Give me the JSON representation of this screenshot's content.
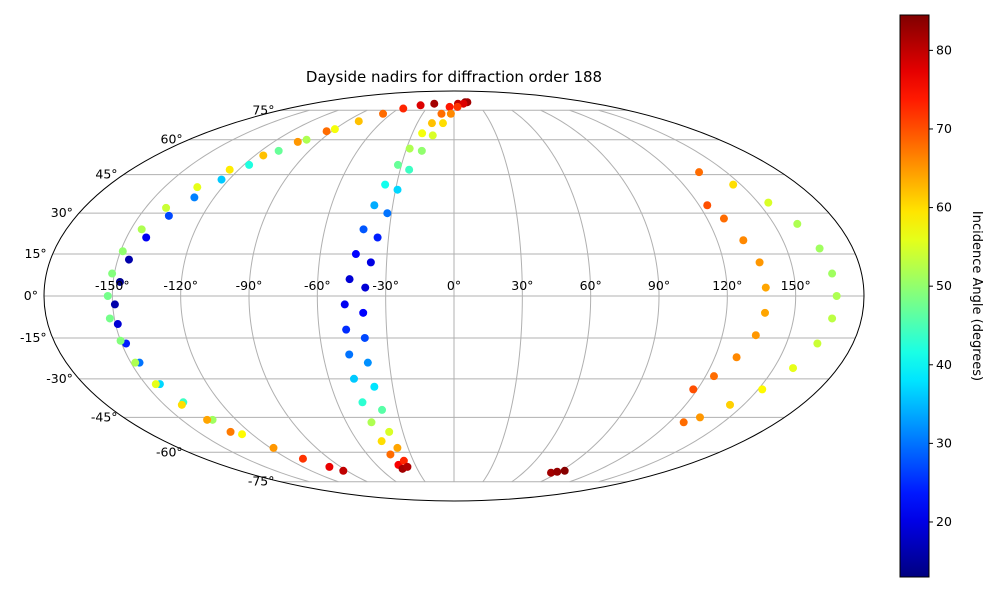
{
  "chart_data": {
    "type": "scatter",
    "projection": "mollweide",
    "title": "Dayside nadirs for diffraction order 188",
    "x_tick_labels": [
      "-150°",
      "-120°",
      "-90°",
      "-60°",
      "-30°",
      "0°",
      "30°",
      "60°",
      "90°",
      "120°",
      "150°"
    ],
    "x_tick_values": [
      -150,
      -120,
      -90,
      -60,
      -30,
      0,
      30,
      60,
      90,
      120,
      150
    ],
    "y_tick_labels": [
      "75°",
      "60°",
      "45°",
      "30°",
      "15°",
      "0°",
      "-15°",
      "-30°",
      "-45°",
      "-60°",
      "-75°"
    ],
    "y_tick_values": [
      75,
      60,
      45,
      30,
      15,
      0,
      -15,
      -30,
      -45,
      -60,
      -75
    ],
    "grid": true,
    "colormap": "jet",
    "colorbar": {
      "label": "Incidence Angle (degrees)",
      "range": [
        13,
        84.5
      ],
      "tick_values": [
        20,
        30,
        40,
        50,
        60,
        70,
        80
      ],
      "tick_labels": [
        "20",
        "30",
        "40",
        "50",
        "60",
        "70",
        "80"
      ],
      "position": "right"
    },
    "series": [
      {
        "points": [
          {
            "lon": -25,
            "lat": 79,
            "c": 82
          },
          {
            "lon": -40,
            "lat": 78,
            "c": 78
          },
          {
            "lon": -55,
            "lat": 76,
            "c": 73
          },
          {
            "lon": -68,
            "lat": 73,
            "c": 68
          },
          {
            "lon": -80,
            "lat": 69,
            "c": 62
          },
          {
            "lon": -90,
            "lat": 65,
            "c": 57
          },
          {
            "lon": -100,
            "lat": 60,
            "c": 52
          },
          {
            "lon": -109,
            "lat": 55,
            "c": 47
          },
          {
            "lon": -117,
            "lat": 49,
            "c": 42
          },
          {
            "lon": -124,
            "lat": 43,
            "c": 36
          },
          {
            "lon": -130,
            "lat": 36,
            "c": 31
          },
          {
            "lon": -136,
            "lat": 29,
            "c": 27
          },
          {
            "lon": -141,
            "lat": 21,
            "c": 21
          },
          {
            "lon": -145,
            "lat": 13,
            "c": 16
          },
          {
            "lon": -147,
            "lat": 5,
            "c": 14
          },
          {
            "lon": -149,
            "lat": -3,
            "c": 16
          },
          {
            "lon": -149,
            "lat": -10,
            "c": 19
          },
          {
            "lon": -148,
            "lat": -17,
            "c": 24
          },
          {
            "lon": -146,
            "lat": -24,
            "c": 30
          },
          {
            "lon": -143,
            "lat": -32,
            "c": 37
          },
          {
            "lon": -139,
            "lat": -39,
            "c": 44
          },
          {
            "lon": -133,
            "lat": -46,
            "c": 51
          },
          {
            "lon": -126,
            "lat": -52,
            "c": 58
          },
          {
            "lon": -118,
            "lat": -58,
            "c": 65
          },
          {
            "lon": -109,
            "lat": -63,
            "c": 72
          },
          {
            "lon": -99,
            "lat": -67,
            "c": 77
          },
          {
            "lon": -93,
            "lat": -69,
            "c": 80
          }
        ]
      },
      {
        "points": [
          {
            "lon": -94,
            "lat": 64,
            "c": 68
          },
          {
            "lon": -104,
            "lat": 59,
            "c": 65
          },
          {
            "lon": -115,
            "lat": 53,
            "c": 62
          },
          {
            "lon": -125,
            "lat": 47,
            "c": 59
          },
          {
            "lon": -133,
            "lat": 40,
            "c": 56
          },
          {
            "lon": -140,
            "lat": 32,
            "c": 54
          },
          {
            "lon": -145,
            "lat": 24,
            "c": 52
          },
          {
            "lon": -149,
            "lat": 16,
            "c": 50
          },
          {
            "lon": -151,
            "lat": 8,
            "c": 49
          },
          {
            "lon": -152,
            "lat": 0,
            "c": 48
          },
          {
            "lon": -152,
            "lat": -8,
            "c": 48
          },
          {
            "lon": -150,
            "lat": -16,
            "c": 49
          },
          {
            "lon": -148,
            "lat": -24,
            "c": 52
          },
          {
            "lon": -145,
            "lat": -32,
            "c": 56
          },
          {
            "lon": -141,
            "lat": -40,
            "c": 60
          },
          {
            "lon": -136,
            "lat": -46,
            "c": 64
          },
          {
            "lon": -131,
            "lat": -51,
            "c": 67
          }
        ]
      },
      {
        "points": [
          {
            "lon": 15,
            "lat": 80,
            "c": 84
          },
          {
            "lon": 5,
            "lat": 79,
            "c": 80
          },
          {
            "lon": -5,
            "lat": 77,
            "c": 74
          },
          {
            "lon": -12,
            "lat": 73,
            "c": 68
          },
          {
            "lon": -18,
            "lat": 68,
            "c": 62
          },
          {
            "lon": -23,
            "lat": 63,
            "c": 57
          },
          {
            "lon": -28,
            "lat": 56,
            "c": 52
          },
          {
            "lon": -32,
            "lat": 49,
            "c": 47
          },
          {
            "lon": -36,
            "lat": 41,
            "c": 41
          },
          {
            "lon": -39,
            "lat": 33,
            "c": 34
          },
          {
            "lon": -42,
            "lat": 24,
            "c": 28
          },
          {
            "lon": -44,
            "lat": 15,
            "c": 22
          },
          {
            "lon": -46,
            "lat": 6,
            "c": 19
          },
          {
            "lon": -48,
            "lat": -3,
            "c": 21
          },
          {
            "lon": -48,
            "lat": -12,
            "c": 25
          },
          {
            "lon": -48,
            "lat": -21,
            "c": 30
          },
          {
            "lon": -48,
            "lat": -30,
            "c": 36
          },
          {
            "lon": -47,
            "lat": -39,
            "c": 43
          },
          {
            "lon": -46,
            "lat": -47,
            "c": 52
          },
          {
            "lon": -45,
            "lat": -55,
            "c": 60
          },
          {
            "lon": -44,
            "lat": -61,
            "c": 68
          },
          {
            "lon": -43,
            "lat": -66,
            "c": 76
          },
          {
            "lon": -42,
            "lat": -68,
            "c": 82
          }
        ]
      },
      {
        "points": [
          {
            "lon": 18,
            "lat": 80,
            "c": 82
          },
          {
            "lon": 12,
            "lat": 79,
            "c": 78
          },
          {
            "lon": 4,
            "lat": 77,
            "c": 72
          },
          {
            "lon": -3,
            "lat": 73,
            "c": 66
          },
          {
            "lon": -9,
            "lat": 68,
            "c": 60
          },
          {
            "lon": -15,
            "lat": 62,
            "c": 55
          },
          {
            "lon": -20,
            "lat": 55,
            "c": 50
          },
          {
            "lon": -25,
            "lat": 47,
            "c": 44
          },
          {
            "lon": -29,
            "lat": 39,
            "c": 37
          },
          {
            "lon": -32,
            "lat": 30,
            "c": 30
          },
          {
            "lon": -35,
            "lat": 21,
            "c": 24
          },
          {
            "lon": -37,
            "lat": 12,
            "c": 20
          },
          {
            "lon": -39,
            "lat": 3,
            "c": 19
          },
          {
            "lon": -40,
            "lat": -6,
            "c": 22
          },
          {
            "lon": -40,
            "lat": -15,
            "c": 27
          },
          {
            "lon": -40,
            "lat": -24,
            "c": 32
          },
          {
            "lon": -39,
            "lat": -33,
            "c": 38
          },
          {
            "lon": -38,
            "lat": -42,
            "c": 46
          },
          {
            "lon": -38,
            "lat": -51,
            "c": 55
          },
          {
            "lon": -37,
            "lat": -58,
            "c": 64
          },
          {
            "lon": -37,
            "lat": -64,
            "c": 73
          },
          {
            "lon": -37,
            "lat": -67,
            "c": 81
          }
        ]
      },
      {
        "points": [
          {
            "lon": 135,
            "lat": 46,
            "c": 68
          },
          {
            "lon": 146,
            "lat": 41,
            "c": 60
          },
          {
            "lon": 155,
            "lat": 34,
            "c": 55
          },
          {
            "lon": 161,
            "lat": 26,
            "c": 52
          },
          {
            "lon": 165,
            "lat": 17,
            "c": 51
          },
          {
            "lon": 167,
            "lat": 8,
            "c": 51
          },
          {
            "lon": 168,
            "lat": 0,
            "c": 52
          },
          {
            "lon": 167,
            "lat": -8,
            "c": 53
          },
          {
            "lon": 164,
            "lat": -17,
            "c": 54
          },
          {
            "lon": 159,
            "lat": -26,
            "c": 56
          },
          {
            "lon": 152,
            "lat": -34,
            "c": 58
          },
          {
            "lon": 143,
            "lat": -40,
            "c": 61
          },
          {
            "lon": 134,
            "lat": -45,
            "c": 65
          },
          {
            "lon": 128,
            "lat": -47,
            "c": 68
          }
        ]
      },
      {
        "points": [
          {
            "lon": 124,
            "lat": 33,
            "c": 70
          },
          {
            "lon": 128,
            "lat": 28,
            "c": 68
          },
          {
            "lon": 132,
            "lat": 20,
            "c": 66
          },
          {
            "lon": 136,
            "lat": 12,
            "c": 65
          },
          {
            "lon": 137,
            "lat": 3,
            "c": 64
          },
          {
            "lon": 137,
            "lat": -6,
            "c": 64
          },
          {
            "lon": 135,
            "lat": -14,
            "c": 65
          },
          {
            "lon": 130,
            "lat": -22,
            "c": 66
          },
          {
            "lon": 124,
            "lat": -29,
            "c": 68
          },
          {
            "lon": 118,
            "lat": -34,
            "c": 70
          }
        ]
      },
      {
        "points": [
          {
            "lon": 84,
            "lat": -70,
            "c": 82
          },
          {
            "lon": 88,
            "lat": -69.5,
            "c": 83
          },
          {
            "lon": 93,
            "lat": -69,
            "c": 84
          }
        ]
      }
    ]
  }
}
